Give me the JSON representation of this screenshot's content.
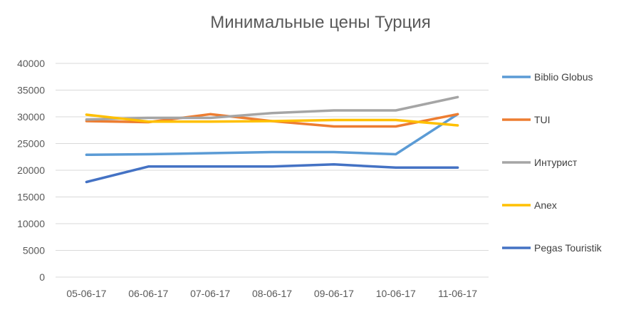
{
  "chart_data": {
    "type": "line",
    "title": "Минимальные цены Турция",
    "xlabel": "",
    "ylabel": "",
    "categories": [
      "05-06-17",
      "06-06-17",
      "07-06-17",
      "08-06-17",
      "09-06-17",
      "10-06-17",
      "11-06-17"
    ],
    "ylim": [
      0,
      40000
    ],
    "yticks": [
      0,
      5000,
      10000,
      15000,
      20000,
      25000,
      30000,
      35000,
      40000
    ],
    "grid": true,
    "legend_position": "right",
    "series": [
      {
        "name": "Biblio Globus",
        "color": "#5B9BD5",
        "values": [
          22900,
          23000,
          23200,
          23400,
          23400,
          23000,
          30500
        ]
      },
      {
        "name": "TUI",
        "color": "#ED7D31",
        "values": [
          29200,
          29000,
          30500,
          29200,
          28200,
          28200,
          30500
        ]
      },
      {
        "name": "Интурист",
        "color": "#A5A5A5",
        "values": [
          29500,
          29800,
          29800,
          30700,
          31200,
          31200,
          33700
        ]
      },
      {
        "name": "Anex",
        "color": "#FFC000",
        "values": [
          30400,
          29100,
          29100,
          29200,
          29400,
          29400,
          28400
        ]
      },
      {
        "name": "Pegas Touristik",
        "color": "#4472C4",
        "values": [
          17800,
          20700,
          20700,
          20700,
          21100,
          20500,
          20500
        ]
      }
    ]
  }
}
